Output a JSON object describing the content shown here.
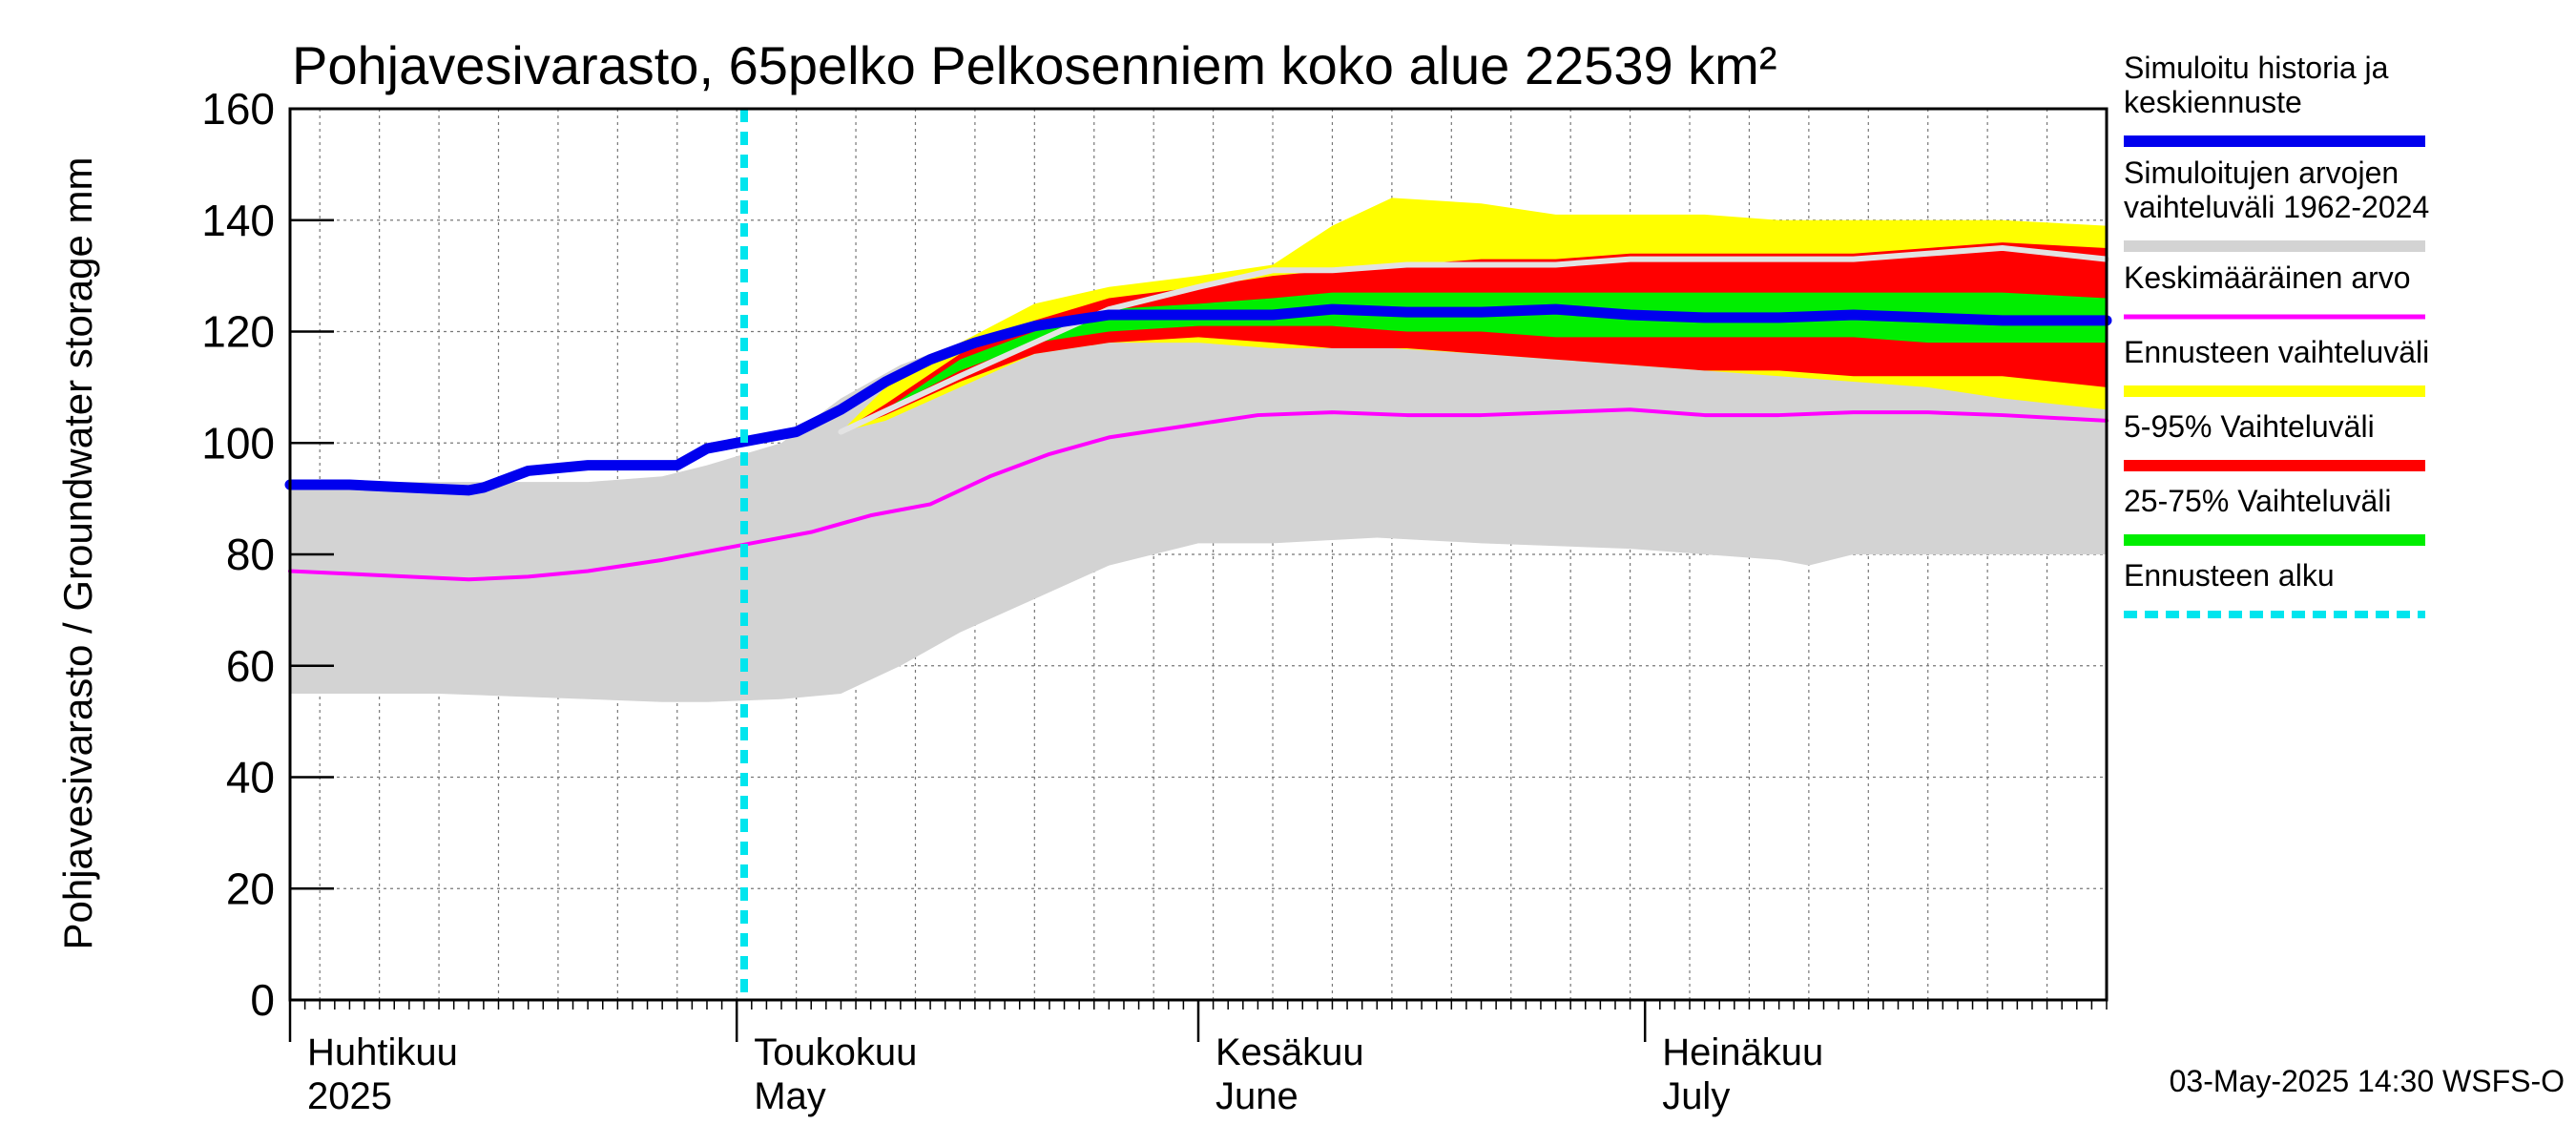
{
  "chart_data": {
    "type": "area",
    "title": "Pohjavesivarasto, 65pelko Pelkosenniem koko alue 22539 km²",
    "ylabel": "Pohjavesivarasto / Groundwater storage   mm",
    "ylim": [
      0,
      160
    ],
    "yticks": [
      0,
      20,
      40,
      60,
      80,
      100,
      120,
      140,
      160
    ],
    "xlim": [
      0,
      122
    ],
    "grid": true,
    "legend_position": "right",
    "month_labels": [
      {
        "day": 0,
        "fi": "Huhtikuu",
        "en": "2025"
      },
      {
        "day": 30,
        "fi": "Toukokuu",
        "en": "May"
      },
      {
        "day": 61,
        "fi": "Kesäkuu",
        "en": "June"
      },
      {
        "day": 91,
        "fi": "Heinäkuu",
        "en": "July"
      }
    ],
    "forecast_start_day": 30.5,
    "series": [
      {
        "name": "Simuloitujen arvojen vaihteluväli 1962-2024",
        "kind": "band",
        "color": "#d3d3d3",
        "x": [
          0,
          10,
          20,
          25,
          28,
          33,
          37,
          41,
          45,
          50,
          55,
          61,
          66,
          73,
          80,
          90,
          100,
          102,
          105,
          112,
          122
        ],
        "low": [
          55,
          55,
          54,
          53.5,
          53.5,
          54,
          55,
          60,
          66,
          72,
          78,
          82,
          82,
          83,
          82,
          81,
          79,
          78,
          80,
          80,
          80
        ],
        "high": [
          93,
          93,
          93,
          94,
          96,
          100,
          108,
          114,
          118,
          120,
          121,
          123,
          125,
          128,
          128,
          128,
          128,
          128,
          128,
          127,
          127
        ]
      },
      {
        "name": "Ennusteen vaihteluväli",
        "kind": "band",
        "color": "#ffff00",
        "x": [
          37,
          40,
          45,
          50,
          55,
          61,
          66,
          70,
          74,
          80,
          85,
          90,
          95,
          100,
          105,
          110,
          115,
          122
        ],
        "low": [
          102,
          104,
          110,
          116,
          118,
          118,
          117,
          117,
          117,
          116,
          115,
          114,
          113,
          112,
          111,
          110,
          108,
          106
        ],
        "high": [
          102,
          110,
          118,
          125,
          128,
          130,
          132,
          139,
          144,
          143,
          141,
          141,
          141,
          140,
          140,
          140,
          140,
          139
        ]
      },
      {
        "name": "5-95% Vaihteluväli",
        "kind": "band",
        "color": "#ff0000",
        "x": [
          37,
          40,
          45,
          50,
          55,
          61,
          66,
          70,
          75,
          80,
          85,
          90,
          95,
          100,
          105,
          110,
          115,
          122
        ],
        "low": [
          102,
          105,
          111,
          116,
          118,
          119,
          118,
          117,
          117,
          116,
          115,
          114,
          113,
          113,
          112,
          112,
          112,
          110
        ],
        "high": [
          102,
          107,
          116,
          122,
          126,
          128,
          130,
          131,
          132,
          133,
          133,
          134,
          134,
          134,
          134,
          135,
          136,
          135
        ]
      },
      {
        "name": "25-75% Vaihteluväli",
        "kind": "band",
        "color": "#00ee00",
        "x": [
          37,
          40,
          45,
          50,
          55,
          61,
          66,
          70,
          75,
          80,
          85,
          90,
          95,
          100,
          105,
          110,
          115,
          122
        ],
        "low": [
          102,
          106,
          113,
          118,
          120,
          121,
          121,
          121,
          120,
          120,
          119,
          119,
          119,
          119,
          119,
          118,
          118,
          118
        ],
        "high": [
          102,
          106,
          115,
          120,
          124,
          125,
          126,
          127,
          127,
          127,
          127,
          127,
          127,
          127,
          127,
          127,
          127,
          126
        ]
      },
      {
        "name": "Keskimääräinen arvo",
        "kind": "line",
        "color": "#ff00ff",
        "width": 4,
        "x": [
          0,
          8,
          12,
          16,
          20,
          25,
          28,
          31,
          35,
          39,
          43,
          47,
          51,
          55,
          60,
          65,
          70,
          75,
          80,
          85,
          90,
          95,
          100,
          105,
          110,
          115,
          122
        ],
        "values": [
          77,
          76,
          75.5,
          76,
          77,
          79,
          80.5,
          82,
          84,
          87,
          89,
          94,
          98,
          101,
          103,
          105,
          105.5,
          105,
          105,
          105.5,
          106,
          105,
          105,
          105.5,
          105.5,
          105,
          104
        ]
      },
      {
        "name": "Simuloitujen arvojen vaihteluväli 1962-2024 (mediaani)",
        "kind": "line",
        "color": "#e3e3e3",
        "width": 6,
        "x": [
          37,
          45,
          55,
          61,
          66,
          70,
          75,
          80,
          85,
          90,
          95,
          100,
          105,
          110,
          115,
          122
        ],
        "values": [
          102,
          112,
          124,
          128,
          131,
          131,
          132,
          132,
          132,
          133,
          133,
          133,
          133,
          134,
          135,
          133
        ]
      },
      {
        "name": "Simuloitu historia ja keskiennuste",
        "kind": "line",
        "color": "#0000ee",
        "width": 11,
        "x": [
          0,
          4,
          8,
          12,
          13,
          16,
          20,
          24,
          26,
          28,
          31,
          34,
          37,
          40,
          43,
          46,
          50,
          55,
          61,
          66,
          70,
          75,
          80,
          85,
          90,
          95,
          100,
          105,
          110,
          115,
          122
        ],
        "values": [
          92.5,
          92.5,
          92,
          91.5,
          92,
          95,
          96,
          96,
          96,
          99,
          100.5,
          102,
          106,
          111,
          115,
          118,
          121,
          123,
          123,
          123,
          124,
          123.5,
          123.5,
          124,
          123,
          122.5,
          122.5,
          123,
          122.5,
          122,
          122
        ]
      },
      {
        "name": "Ennusteen alku",
        "kind": "vline",
        "color": "#00e5ee",
        "width": 8,
        "x": 30.5
      }
    ]
  },
  "legend": [
    {
      "label": "Simuloitu historia ja keskiennuste",
      "color": "#0000ee"
    },
    {
      "label": "Simuloitujen arvojen vaihteluväli 1962-2024",
      "color": "#d3d3d3"
    },
    {
      "label": "Keskimääräinen arvo",
      "color": "#ff00ff"
    },
    {
      "label": "Ennusteen vaihteluväli",
      "color": "#ffff00"
    },
    {
      "label": "5-95% Vaihteluväli",
      "color": "#ff0000"
    },
    {
      "label": "25-75% Vaihteluväli",
      "color": "#00ee00"
    },
    {
      "label": "Ennusteen alku",
      "color": "#00e5ee"
    }
  ],
  "timestamp": "03-May-2025 14:30 WSFS-O"
}
